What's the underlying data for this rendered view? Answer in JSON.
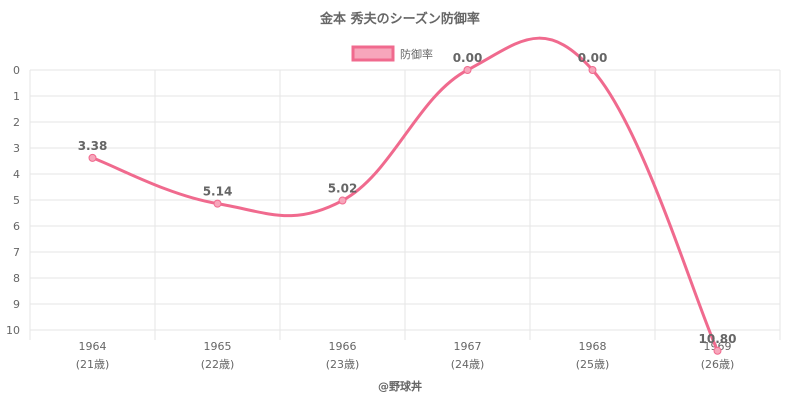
{
  "chart_data": {
    "type": "line",
    "title": "金本 秀夫のシーズン防御率",
    "legend": {
      "label": "防御率",
      "position": "top"
    },
    "categories": [
      "1964",
      "1965",
      "1966",
      "1967",
      "1968",
      "1969"
    ],
    "category_sublabels": [
      "(21歳)",
      "(22歳)",
      "(23歳)",
      "(24歳)",
      "(25歳)",
      "(26歳)"
    ],
    "series": [
      {
        "name": "防御率",
        "values": [
          3.38,
          5.14,
          5.02,
          0.0,
          0.0,
          10.8
        ],
        "labels": [
          "3.38",
          "5.14",
          "5.02",
          "0.00",
          "0.00",
          "10.80"
        ]
      }
    ],
    "y_ticks": [
      "0",
      "1",
      "2",
      "3",
      "4",
      "5",
      "6",
      "7",
      "8",
      "9",
      "10"
    ],
    "ylim": [
      0,
      10
    ],
    "y_reversed": true,
    "grid": true,
    "colors": {
      "line": "#f06a8e",
      "fill": "#f7a6bb",
      "grid": "#e5e5e5",
      "text": "#666666"
    }
  },
  "credit": "@野球丼"
}
